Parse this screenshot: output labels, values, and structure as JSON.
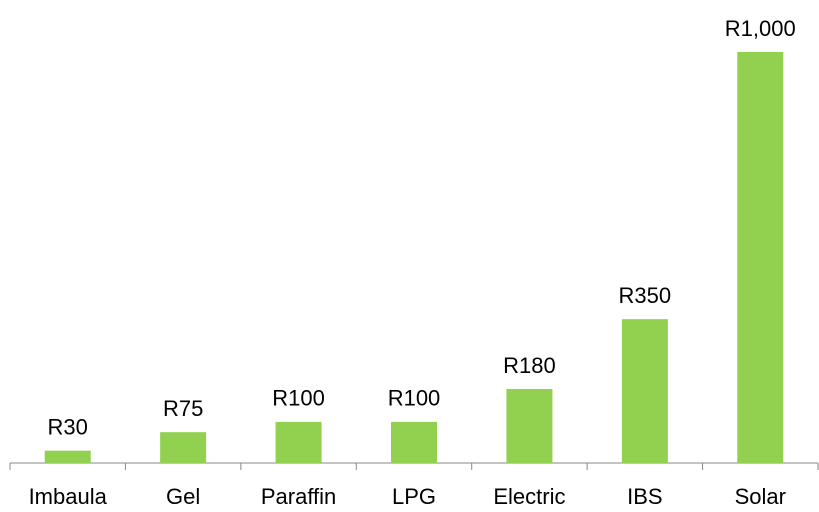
{
  "chart_data": {
    "type": "bar",
    "categories": [
      "Imbaula",
      "Gel",
      "Paraffin",
      "LPG",
      "Electric",
      "IBS",
      "Solar"
    ],
    "values": [
      30,
      75,
      100,
      100,
      180,
      350,
      1000
    ],
    "value_labels": [
      "R30",
      "R75",
      "R100",
      "R100",
      "R180",
      "R350",
      "R1,000"
    ],
    "color": "#92d050",
    "ylim": [
      0,
      1000
    ]
  }
}
